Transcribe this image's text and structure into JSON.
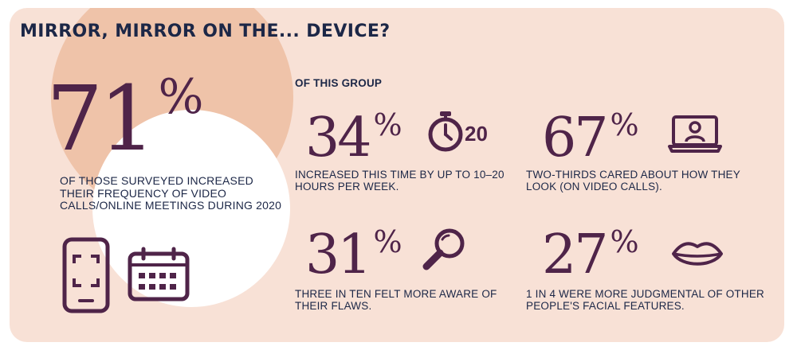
{
  "title": "MIRROR, MIRROR ON THE... DEVICE?",
  "main_stat": {
    "value": "71",
    "unit": "%",
    "label": "OF THOSE SURVEYED INCREASED THEIR FREQUENCY OF VIDEO CALLS/ONLINE MEETINGS DURING 2020"
  },
  "group_label": "OF THIS GROUP",
  "stats": [
    {
      "value": "34",
      "unit": "%",
      "label": "INCREASED THIS TIME BY UP TO 10–20 HOURS PER WEEK.",
      "icon": "stopwatch-icon",
      "icon_text": "20"
    },
    {
      "value": "67",
      "unit": "%",
      "label": "TWO-THIRDS CARED ABOUT HOW THEY LOOK (ON VIDEO CALLS).",
      "icon": "laptop-user-icon"
    },
    {
      "value": "31",
      "unit": "%",
      "label": "THREE IN TEN FELT MORE AWARE OF THEIR FLAWS.",
      "icon": "magnifier-icon"
    },
    {
      "value": "27",
      "unit": "%",
      "label": "1 IN 4 WERE MORE JUDGMENTAL OF OTHER PEOPLE'S FACIAL FEATURES.",
      "icon": "lips-icon"
    }
  ],
  "side_icons": [
    "phone-scan-icon",
    "calendar-icon"
  ],
  "colors": {
    "background": "#f8e1d6",
    "accent": "#4f2449",
    "text": "#1c2747",
    "blob": "#efc3a9"
  }
}
